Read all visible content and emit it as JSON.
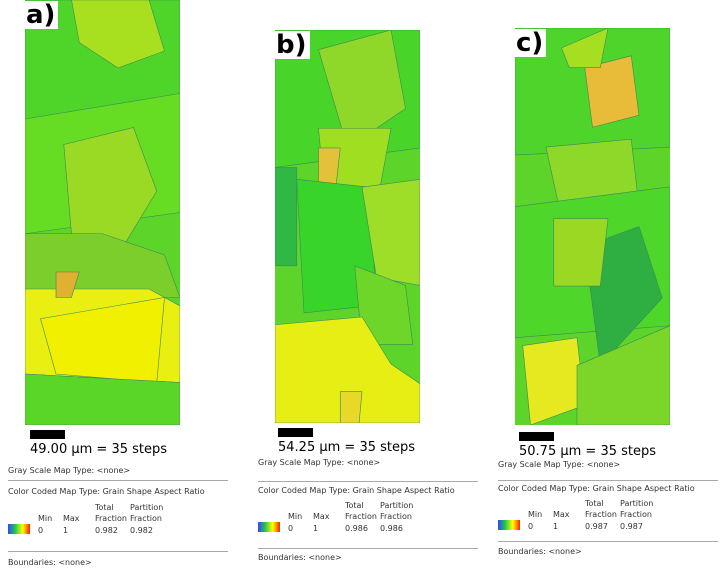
{
  "panels": [
    {
      "label": "a)",
      "scale": "49.00 µm = 35 steps",
      "gray_scale": "Gray Scale Map Type: <none>",
      "color_coded": "Color Coded Map Type: Grain Shape Aspect Ratio",
      "table": {
        "headers": [
          "Min",
          "Max",
          "Total Fraction",
          "Partition Fraction"
        ],
        "row": [
          0,
          1,
          0.982,
          0.982
        ]
      },
      "boundaries": "Boundaries: <none>"
    },
    {
      "label": "b)",
      "scale": "54.25 µm = 35 steps",
      "gray_scale": "Gray Scale Map Type: <none>",
      "color_coded": "Color Coded Map Type: Grain Shape Aspect Ratio",
      "table": {
        "headers": [
          "Min",
          "Max",
          "Total Fraction",
          "Partition Fraction"
        ],
        "row": [
          0,
          1,
          0.986,
          0.986
        ]
      },
      "boundaries": "Boundaries: <none>"
    },
    {
      "label": "c)",
      "scale": "50.75 µm = 35 steps",
      "gray_scale": "Gray Scale Map Type: <none>",
      "color_coded": "Color Coded Map Type: Grain Shape Aspect Ratio",
      "table": {
        "headers": [
          "Min",
          "Max",
          "Total Fraction",
          "Partition Fraction"
        ],
        "row": [
          0,
          1,
          0.987,
          0.987
        ]
      },
      "boundaries": "Boundaries: <none>"
    }
  ]
}
